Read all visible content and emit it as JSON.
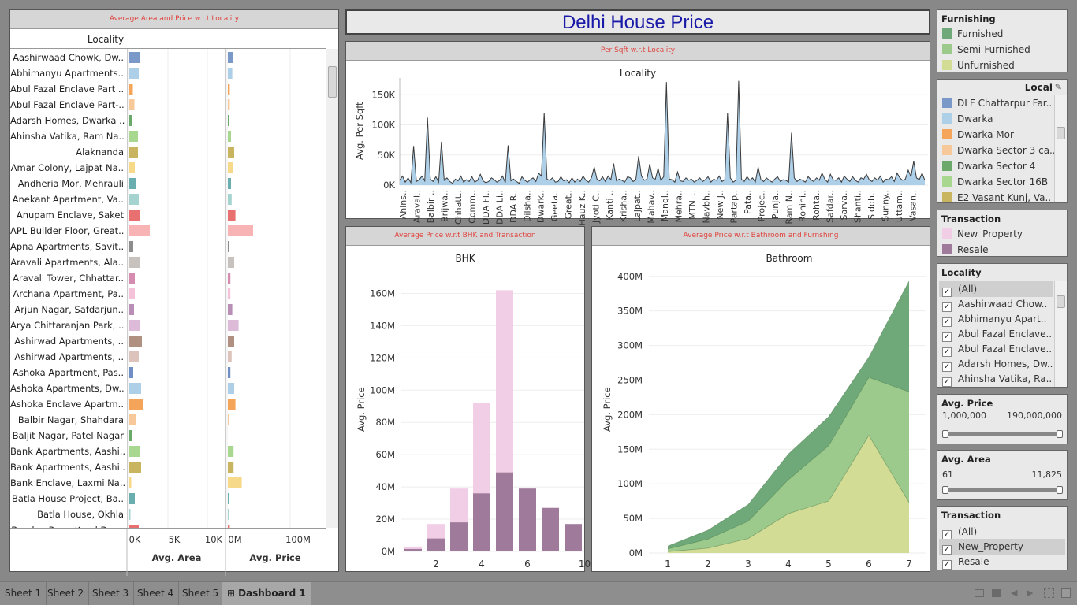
{
  "dashboard": {
    "title": "Delhi House Price",
    "title_color": "#1a1aa8"
  },
  "sheet_headers": {
    "area_price": "Average Area and Price w.r.t Locality",
    "per_sqft": "Per Sqft w.r.t Locality",
    "bhk": "Average Price w.r.t BHK and Transaction",
    "bathroom": "Average Price w.r.t Bathroom and Furnshing"
  },
  "locality_panel": {
    "column_header": "Locality",
    "localities": [
      {
        "name": "Aashirwaad Chowk, Dw..",
        "area": 1400,
        "price": 8,
        "color": "#7a99c9"
      },
      {
        "name": "Abhimanyu Apartments..",
        "area": 1200,
        "price": 7,
        "color": "#aecfe8"
      },
      {
        "name": "Abul Fazal Enclave Part ..",
        "area": 450,
        "price": 3,
        "color": "#f5a55a"
      },
      {
        "name": "Abul Fazal Enclave Part-..",
        "area": 650,
        "price": 3,
        "color": "#f7c99a"
      },
      {
        "name": "Adarsh Homes, Dwarka ..",
        "area": 350,
        "price": 2,
        "color": "#6aa96a"
      },
      {
        "name": "Ahinsha Vatika, Ram Na..",
        "area": 1100,
        "price": 5,
        "color": "#a8d890"
      },
      {
        "name": "Alaknanda",
        "area": 1100,
        "price": 10,
        "color": "#c9b45f"
      },
      {
        "name": "Amar Colony, Lajpat Na..",
        "area": 700,
        "price": 8,
        "color": "#f7d98a"
      },
      {
        "name": "Andheria Mor, Mehrauli",
        "area": 800,
        "price": 5,
        "color": "#6aaeb0"
      },
      {
        "name": "Anekant Apartment, Va..",
        "area": 1200,
        "price": 6,
        "color": "#a5d3cf"
      },
      {
        "name": "Anupam Enclave, Saket",
        "area": 1400,
        "price": 12,
        "color": "#e97070"
      },
      {
        "name": "APL Builder Floor, Great..",
        "area": 2600,
        "price": 40,
        "color": "#f8b4b4"
      },
      {
        "name": "Apna Apartments, Savit..",
        "area": 500,
        "price": 2,
        "color": "#8c8c8c"
      },
      {
        "name": "Aravali Apartments, Ala..",
        "area": 1400,
        "price": 10,
        "color": "#c7c2bd"
      },
      {
        "name": "Aravali Tower, Chhattar..",
        "area": 700,
        "price": 4,
        "color": "#d68bb0"
      },
      {
        "name": "Archana Apartment, Pa..",
        "area": 700,
        "price": 4,
        "color": "#f4c3d9"
      },
      {
        "name": "Arjun Nagar, Safdarjun..",
        "area": 600,
        "price": 7,
        "color": "#b98fb7"
      },
      {
        "name": "Arya Chittaranjan Park, ..",
        "area": 1300,
        "price": 17,
        "color": "#dcbad8"
      },
      {
        "name": "Ashirwad Apartments, ..",
        "area": 1600,
        "price": 10,
        "color": "#b09080"
      },
      {
        "name": "Ashirwad Apartments, ..",
        "area": 1200,
        "price": 6,
        "color": "#dcc4bc"
      },
      {
        "name": "Ashoka Apartment, Pas..",
        "area": 500,
        "price": 4,
        "color": "#6f8fc4"
      },
      {
        "name": "Ashoka Apartments, Dw..",
        "area": 1500,
        "price": 10,
        "color": "#aecfe8"
      },
      {
        "name": "Ashoka Enclave Apartm..",
        "area": 1700,
        "price": 12,
        "color": "#f5a55a"
      },
      {
        "name": "Balbir Nagar, Shahdara",
        "area": 800,
        "price": 2,
        "color": "#f7c99a"
      },
      {
        "name": "Baljit Nagar, Patel Nagar",
        "area": 400,
        "price": 0,
        "color": "#6aa96a"
      },
      {
        "name": "Bank Apartments, Aashi..",
        "area": 1400,
        "price": 9,
        "color": "#a8d890"
      },
      {
        "name": "Bank Apartments, Aashi..",
        "area": 1500,
        "price": 9,
        "color": "#c9b45f"
      },
      {
        "name": "Bank Enclave, Laxmi Na..",
        "area": 250,
        "price": 22,
        "color": "#f7d98a"
      },
      {
        "name": "Batla House Project, Ba..",
        "area": 700,
        "price": 2,
        "color": "#6aaeb0"
      },
      {
        "name": "Batla House, Okhla",
        "area": 150,
        "price": 1,
        "color": "#a5d3cf"
      },
      {
        "name": "Beadon Pura, Karol Bag..",
        "area": 1200,
        "price": 3,
        "color": "#e97070"
      }
    ],
    "area_axis": {
      "title": "Avg. Area",
      "ticks": [
        "0K",
        "5K",
        "10K"
      ],
      "max": 12000
    },
    "price_axis": {
      "title": "Avg. Price",
      "ticks": [
        "0M",
        "100M"
      ],
      "max": 140
    }
  },
  "per_sqft_chart": {
    "title": "Locality",
    "ylabel": "Avg. Per Sqft",
    "yticks": [
      "0K",
      "50K",
      "100K",
      "150K"
    ],
    "x_labels": [
      "Ahins..",
      "Araval..",
      "Balbir ..",
      "Brijwa..",
      "Chhatt..",
      "Comm..",
      "DDA Fl..",
      "DDA Li..",
      "DDA R..",
      "Dilsha..",
      "Dwark..",
      "Geeta..",
      "Great..",
      "Hauz K..",
      "Jyoti C..",
      "Kanti ..",
      "Krisha..",
      "Lajpat..",
      "Mahav..",
      "Mangl..",
      "Mehra..",
      "MTNL..",
      "Navbh..",
      "New J..",
      "Partap..",
      "Pata..",
      "Projec..",
      "Punja..",
      "Ram N..",
      "Rohini..",
      "Rohta..",
      "Safdar..",
      "Sarva..",
      "Shanti..",
      "Siddh..",
      "Sunny..",
      "Uttam..",
      "Vasan.."
    ]
  },
  "chart_data": [
    {
      "type": "line",
      "title": "Locality",
      "ylabel": "Avg. Per Sqft",
      "ylim": [
        0,
        170000
      ],
      "values": [
        8000,
        15000,
        5000,
        12000,
        4000,
        65000,
        6000,
        9000,
        15000,
        7000,
        112000,
        10000,
        6000,
        14000,
        5000,
        72000,
        8000,
        12000,
        6000,
        3000,
        10000,
        7000,
        15000,
        5000,
        9000,
        6000,
        14000,
        5000,
        8000,
        18000,
        7000,
        4000,
        6000,
        12000,
        9000,
        5000,
        8000,
        15000,
        4000,
        66000,
        7000,
        10000,
        6000,
        3000,
        14000,
        8000,
        5000,
        9000,
        12000,
        6000,
        20000,
        15000,
        120000,
        10000,
        8000,
        12000,
        5000,
        6000,
        14000,
        7000,
        9000,
        4000,
        12000,
        5000,
        10000,
        6000,
        15000,
        8000,
        5000,
        12000,
        30000,
        10000,
        7000,
        14000,
        6000,
        15000,
        9000,
        36000,
        7000,
        10000,
        8000,
        5000,
        14000,
        12000,
        6000,
        9000,
        48000,
        15000,
        8000,
        10000,
        35000,
        12000,
        10000,
        28000,
        8000,
        14000,
        171000,
        10000,
        9000,
        5000,
        22000,
        7000,
        6000,
        12000,
        8000,
        10000,
        5000,
        8000,
        12000,
        6000,
        9000,
        14000,
        5000,
        10000,
        8000,
        15000,
        6000,
        9000,
        120000,
        12000,
        5000,
        8000,
        173000,
        10000,
        6000,
        14000,
        8000,
        12000,
        5000,
        30000,
        9000,
        6000,
        12000,
        8000,
        5000,
        10000,
        14000,
        6000,
        9000,
        8000,
        5000,
        87000,
        12000,
        6000,
        10000,
        8000,
        5000,
        14000,
        9000,
        6000,
        12000,
        8000,
        20000,
        10000,
        5000,
        18000,
        9000,
        8000,
        12000,
        5000,
        15000,
        10000,
        6000,
        14000,
        8000,
        5000,
        12000,
        10000,
        18000,
        9000,
        6000,
        12000,
        8000,
        15000,
        5000,
        10000,
        9000,
        14000,
        6000,
        20000,
        12000,
        8000,
        10000,
        25000,
        14000,
        40000,
        12000,
        9000,
        20000,
        8000
      ]
    },
    {
      "type": "bar",
      "title": "BHK",
      "ylabel": "Avg. Price",
      "ylim": [
        0,
        170
      ],
      "xticks": [
        "2",
        "4",
        "6",
        "10"
      ],
      "categories": [
        1,
        2,
        3,
        4,
        5,
        6,
        7,
        8
      ],
      "series": [
        {
          "name": "New_Property",
          "color": "#f2cde6",
          "values": [
            3,
            17,
            39,
            92,
            162,
            0,
            0,
            0
          ]
        },
        {
          "name": "Resale",
          "color": "#a07a9a",
          "values": [
            1.5,
            8,
            18,
            36,
            49,
            39,
            27,
            17
          ]
        }
      ]
    },
    {
      "type": "area",
      "title": "Bathroom",
      "ylabel": "Avg. Price",
      "ylim": [
        0,
        410
      ],
      "x": [
        1,
        2,
        3,
        4,
        5,
        6,
        7
      ],
      "series": [
        {
          "name": "Furnished",
          "color": "#6fa97a",
          "values": [
            10,
            33,
            70,
            143,
            197,
            283,
            393
          ]
        },
        {
          "name": "Semi-Furnished",
          "color": "#9cc98c",
          "values": [
            6,
            20,
            46,
            106,
            155,
            254,
            233
          ]
        },
        {
          "name": "Unfurnished",
          "color": "#d2dc95",
          "values": [
            2,
            7,
            21,
            57,
            75,
            170,
            73
          ]
        }
      ]
    }
  ],
  "bhk_chart": {
    "title": "BHK",
    "ylabel": "Avg. Price",
    "yticks": [
      "0M",
      "20M",
      "40M",
      "60M",
      "80M",
      "100M",
      "120M",
      "140M",
      "160M"
    ],
    "xticks": [
      "2",
      "4",
      "6",
      "10"
    ]
  },
  "bath_chart": {
    "title": "Bathroom",
    "ylabel": "Avg. Price",
    "yticks": [
      "0M",
      "50M",
      "100M",
      "150M",
      "200M",
      "250M",
      "300M",
      "350M",
      "400M"
    ],
    "xticks": [
      "1",
      "2",
      "3",
      "4",
      "5",
      "6",
      "7"
    ]
  },
  "filters": {
    "furnishing": {
      "title": "Furnishing",
      "items": [
        {
          "label": "Furnished",
          "color": "#6fa97a"
        },
        {
          "label": "Semi-Furnished",
          "color": "#9cc98c"
        },
        {
          "label": "Unfurnished",
          "color": "#d2dc95"
        }
      ]
    },
    "local_legend": {
      "title": "Local",
      "items": [
        {
          "label": "DLF Chattarpur Far..",
          "color": "#7a99c9"
        },
        {
          "label": "Dwarka",
          "color": "#aecfe8"
        },
        {
          "label": "Dwarka Mor",
          "color": "#f5a55a"
        },
        {
          "label": "Dwarka Sector 3 ca..",
          "color": "#f7c99a"
        },
        {
          "label": "Dwarka Sector 4",
          "color": "#6aa96a"
        },
        {
          "label": "Dwarka Sector 16B",
          "color": "#a8d890"
        },
        {
          "label": "E2 Vasant Kunj, Va..",
          "color": "#c9b45f"
        }
      ]
    },
    "transaction_legend": {
      "title": "Transaction",
      "items": [
        {
          "label": "New_Property",
          "color": "#f2cde6"
        },
        {
          "label": "Resale",
          "color": "#a07a9a"
        }
      ]
    },
    "locality_filter": {
      "title": "Locality",
      "items": [
        "(All)",
        "Aashirwaad Chow..",
        "Abhimanyu Apart..",
        "Abul Fazal Enclave..",
        "Abul Fazal Enclave..",
        "Adarsh Homes, Dw..",
        "Ahinsha Vatika, Ra.."
      ]
    },
    "avg_price": {
      "title": "Avg. Price",
      "min": "1,000,000",
      "max": "190,000,000"
    },
    "avg_area": {
      "title": "Avg. Area",
      "min": "61",
      "max": "11,825"
    },
    "transaction_filter": {
      "title": "Transaction",
      "items": [
        "(All)",
        "New_Property",
        "Resale"
      ]
    }
  },
  "tabs": [
    "Sheet 1",
    "Sheet 2",
    "Sheet 3",
    "Sheet 4",
    "Sheet 5",
    "Dashboard 1"
  ]
}
